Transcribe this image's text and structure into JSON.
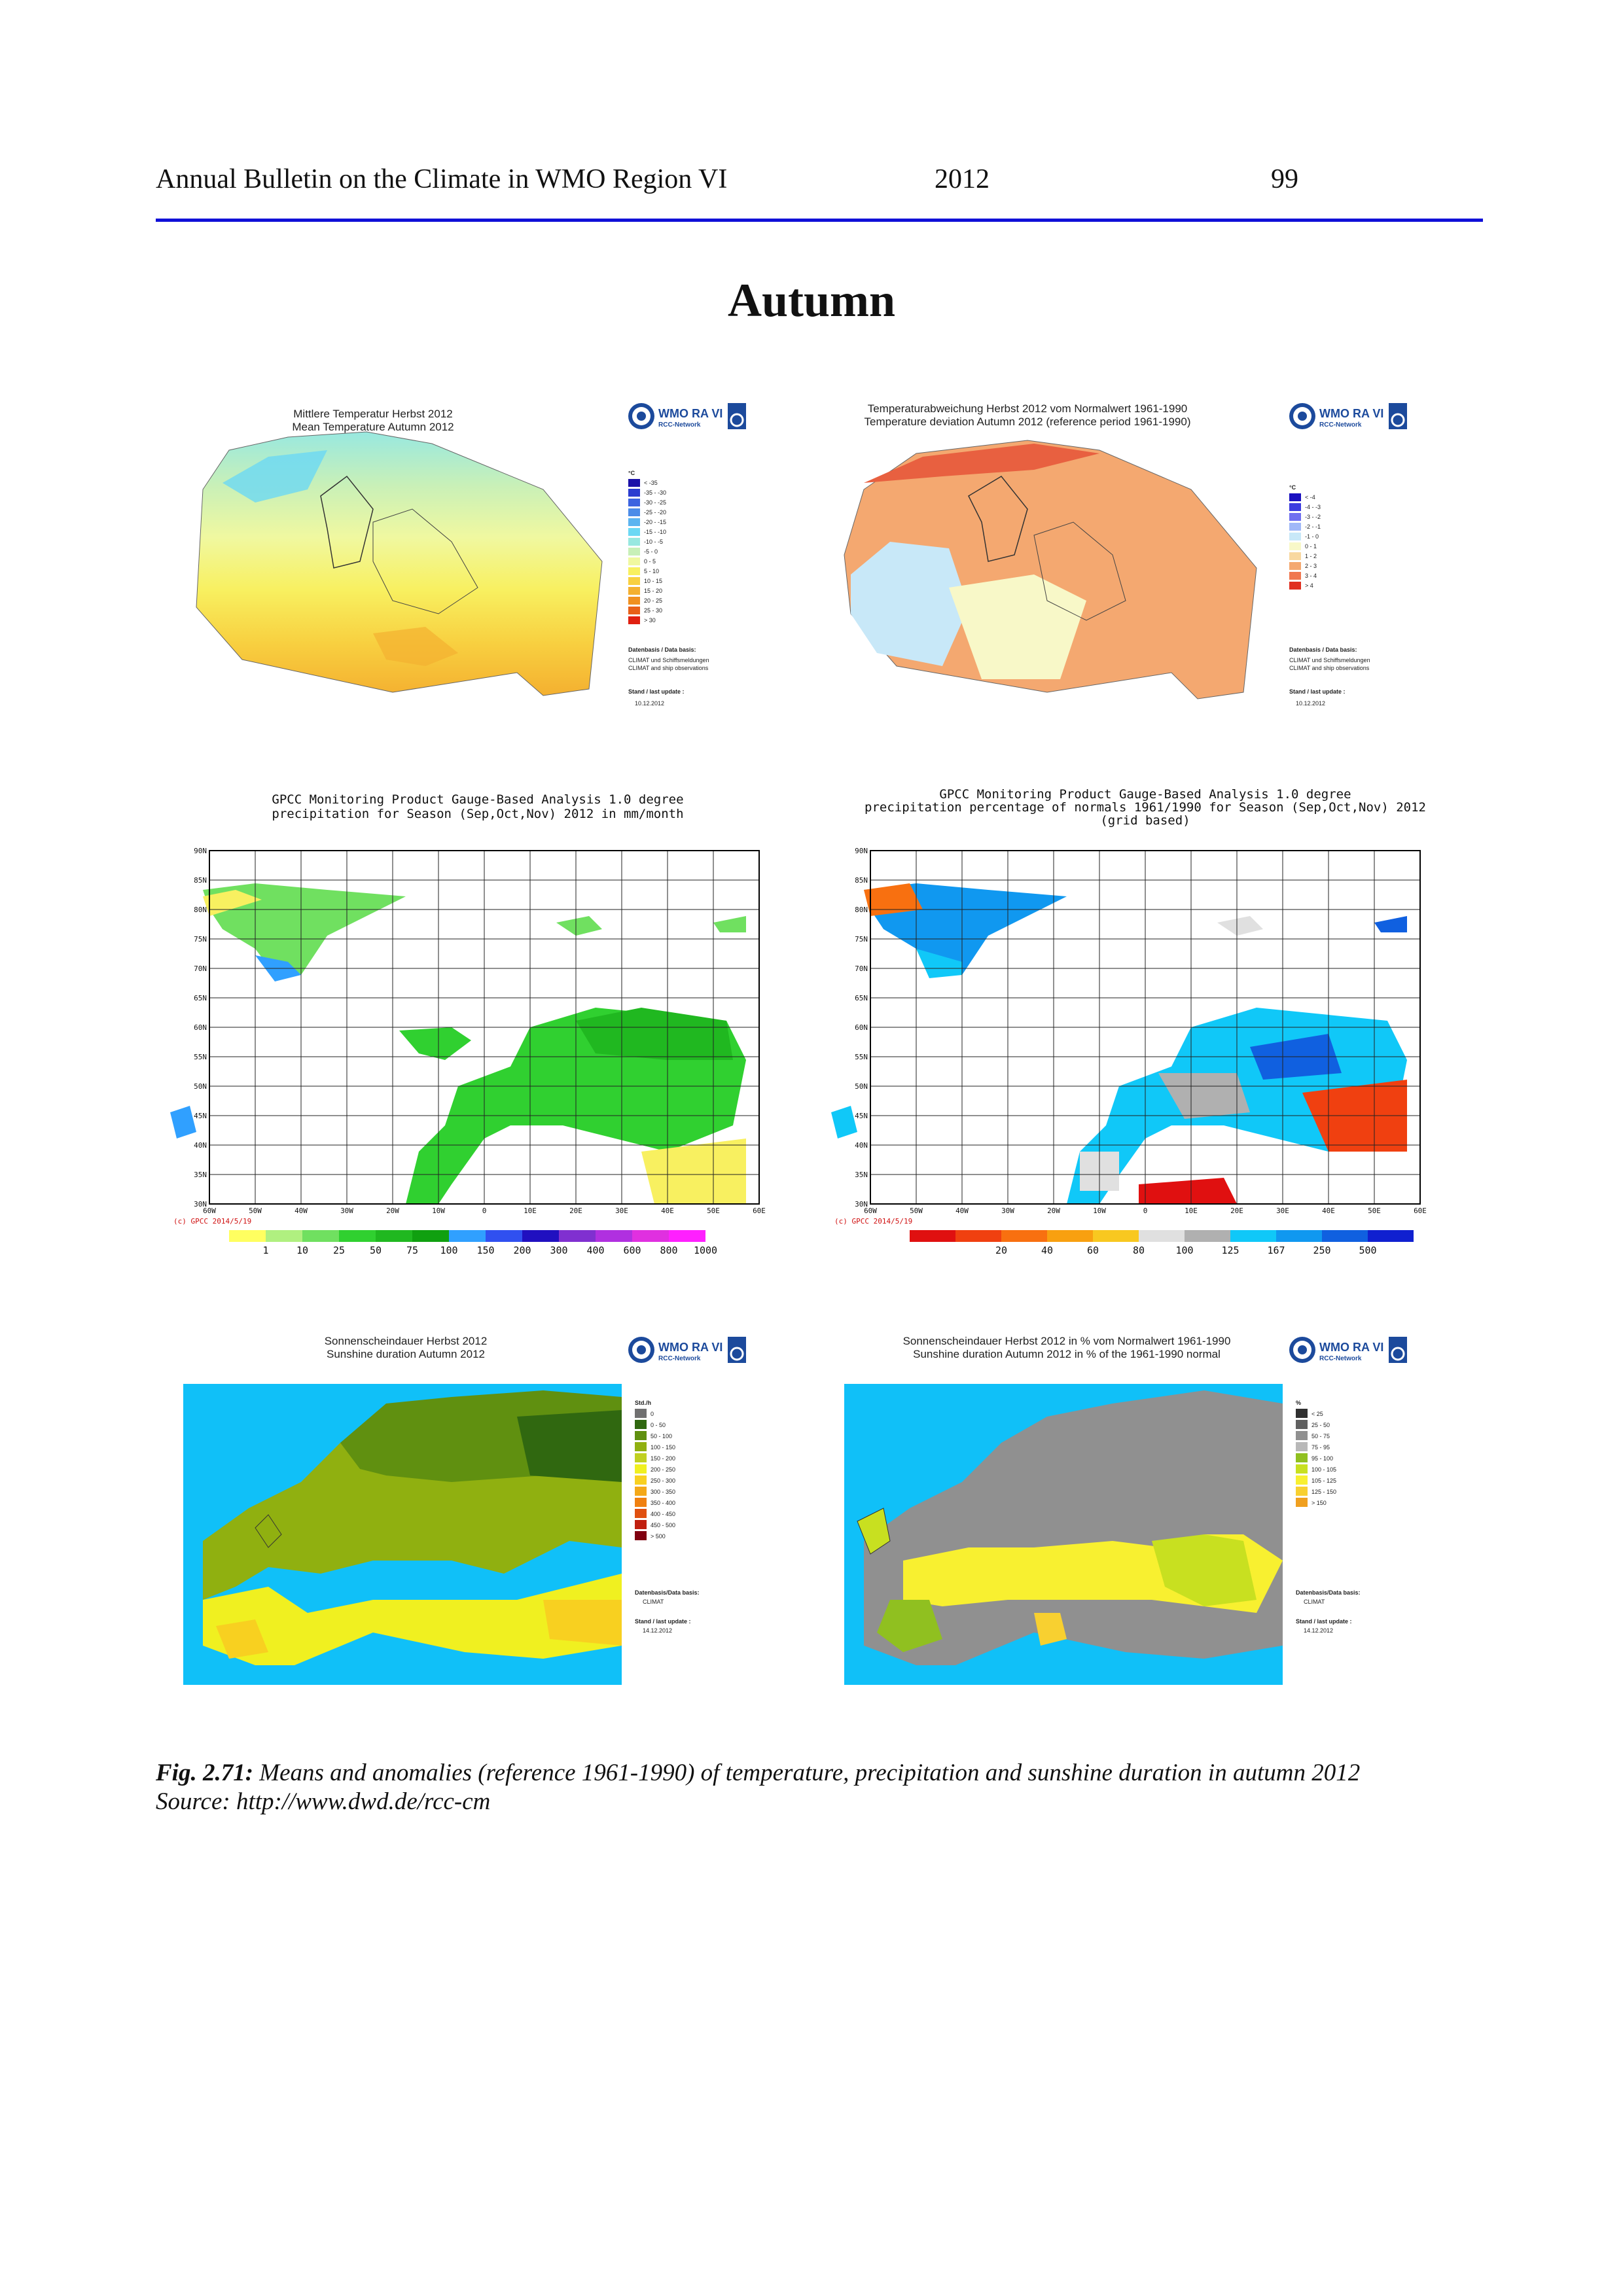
{
  "header": {
    "title": "Annual Bulletin on the Climate in WMO Region VI",
    "year": "2012",
    "page": "99"
  },
  "section_title": "Autumn",
  "logo": {
    "main": "WMO RA VI",
    "sub": "RCC-Network",
    "dwd": "DWD"
  },
  "panels": {
    "temp_mean": {
      "title_de": "Mittlere Temperatur Herbst 2012",
      "title_en": "Mean Temperature Autumn 2012",
      "unit": "°C",
      "legend": [
        "< -35",
        "-35 - -30",
        "-30 - -25",
        "-25 - -20",
        "-20 - -15",
        "-15 - -10",
        "-10 - -5",
        "-5 - 0",
        "0 - 5",
        "5 - 10",
        "10 - 15",
        "15 - 20",
        "20 - 25",
        "25 - 30",
        "> 30"
      ],
      "colors": [
        "#1a10a8",
        "#2a3cd0",
        "#3c64e0",
        "#4c8ce8",
        "#5cb4f0",
        "#6cd8f4",
        "#98e8e0",
        "#c8f0b8",
        "#f0f8a0",
        "#f8f060",
        "#f8d040",
        "#f4b030",
        "#f09020",
        "#e86018",
        "#e02010"
      ],
      "data_basis_label": "Datenbasis / Data basis:",
      "data_basis_1": "CLIMAT und Schiffsmeldungen",
      "data_basis_2": "CLIMAT and ship observations",
      "update_label": "Stand / last update :",
      "update_date": "10.12.2012"
    },
    "temp_dev": {
      "title_de": "Temperaturabweichung Herbst 2012 vom Normalwert 1961-1990",
      "title_en": "Temperature deviation Autumn 2012 (reference period 1961-1990)",
      "unit": "°C",
      "legend": [
        "< -4",
        "-4 - -3",
        "-3 - -2",
        "-2 - -1",
        "-1 - 0",
        "0 - 1",
        "1 - 2",
        "2 - 3",
        "3 - 4",
        "> 4"
      ],
      "colors": [
        "#1a10c0",
        "#3c3ce0",
        "#7070f0",
        "#a0b8f8",
        "#c8e8f8",
        "#f8f8c8",
        "#f8d8a0",
        "#f4a870",
        "#f07850",
        "#e03020"
      ],
      "data_basis_label": "Datenbasis / Data basis:",
      "data_basis_1": "CLIMAT und Schiffsmeldungen",
      "data_basis_2": "CLIMAT and ship observations",
      "update_label": "Stand / last update :",
      "update_date": "10.12.2012"
    },
    "precip": {
      "title_1": "GPCC Monitoring Product Gauge-Based Analysis 1.0 degree",
      "title_2": "precipitation for Season (Sep,Oct,Nov) 2012 in mm/month",
      "title_3": "",
      "lat_labels": [
        "90N",
        "85N",
        "80N",
        "75N",
        "70N",
        "65N",
        "60N",
        "55N",
        "50N",
        "45N",
        "40N",
        "35N",
        "30N"
      ],
      "lon_labels": [
        "60W",
        "50W",
        "40W",
        "30W",
        "20W",
        "10W",
        "0",
        "10E",
        "20E",
        "30E",
        "40E",
        "50E",
        "60E"
      ],
      "copyright": "(c) GPCC 2014/5/19",
      "legend_values": [
        "1",
        "10",
        "25",
        "50",
        "75",
        "100",
        "150",
        "200",
        "300",
        "400",
        "600",
        "800",
        "1000"
      ],
      "colors": [
        "#ffff60",
        "#b0f080",
        "#70e060",
        "#30d030",
        "#20b820",
        "#10a010",
        "#30a0ff",
        "#3050f0",
        "#2010c0",
        "#8030d0",
        "#b030e0",
        "#e030e0",
        "#ff20ff"
      ]
    },
    "precip_pct": {
      "title_1": "GPCC Monitoring Product Gauge-Based Analysis 1.0 degree",
      "title_2": "precipitation percentage of normals 1961/1990 for Season (Sep,Oct,Nov) 2012",
      "title_3": "(grid based)",
      "lat_labels": [
        "90N",
        "85N",
        "80N",
        "75N",
        "70N",
        "65N",
        "60N",
        "55N",
        "50N",
        "45N",
        "40N",
        "35N",
        "30N"
      ],
      "lon_labels": [
        "60W",
        "50W",
        "40W",
        "30W",
        "20W",
        "10W",
        "0",
        "10E",
        "20E",
        "30E",
        "40E",
        "50E",
        "60E"
      ],
      "copyright": "(c) GPCC 2014/5/19",
      "legend_values": [
        "20",
        "40",
        "60",
        "80",
        "100",
        "125",
        "167",
        "250",
        "500"
      ],
      "colors": [
        "#e01010",
        "#f04010",
        "#f87010",
        "#f8a010",
        "#f8c820",
        "#e0e0e0",
        "#b0b0b0",
        "#10c8f8",
        "#1098f0",
        "#1060e0",
        "#1020d0"
      ]
    },
    "sun": {
      "title_de": "Sonnenscheindauer Herbst 2012",
      "title_en": "Sunshine duration Autumn 2012",
      "unit": "Std./h",
      "legend": [
        "0",
        "0 - 50",
        "50 - 100",
        "100 - 150",
        "150 - 200",
        "200 - 250",
        "250 - 300",
        "300 - 350",
        "350 - 400",
        "400 - 450",
        "450 - 500",
        "> 500"
      ],
      "colors": [
        "#707070",
        "#306810",
        "#609010",
        "#90b010",
        "#c0d020",
        "#f0f020",
        "#f8d020",
        "#f4a818",
        "#f08010",
        "#e05010",
        "#c02010",
        "#800010"
      ],
      "data_basis_label": "Datenbasis/Data basis:",
      "data_basis_1": "CLIMAT",
      "data_basis_2": "",
      "update_label": "Stand / last update :",
      "update_date": "14.12.2012"
    },
    "sun_pct": {
      "title_de": "Sonnenscheindauer Herbst 2012 in % vom Normalwert 1961-1990",
      "title_en": "Sunshine duration Autumn 2012 in % of the 1961-1990 normal",
      "unit": "%",
      "legend": [
        "< 25",
        "25 - 50",
        "50 - 75",
        "75 - 95",
        "95 - 100",
        "100 - 105",
        "105 - 125",
        "125 - 150",
        "> 150"
      ],
      "colors": [
        "#303030",
        "#606060",
        "#909090",
        "#b8b8b8",
        "#90c020",
        "#c8e020",
        "#f8f030",
        "#f8d030",
        "#f0a020"
      ],
      "data_basis_label": "Datenbasis/Data basis:",
      "data_basis_1": "CLIMAT",
      "data_basis_2": "",
      "update_label": "Stand / last update :",
      "update_date": "14.12.2012"
    }
  },
  "caption": {
    "label": "Fig. 2.71:",
    "text": " Means and anomalies (reference 1961-1990) of temperature, precipitation and sunshine duration in autumn 2012",
    "source": "Source: http://www.dwd.de/rcc-cm"
  }
}
